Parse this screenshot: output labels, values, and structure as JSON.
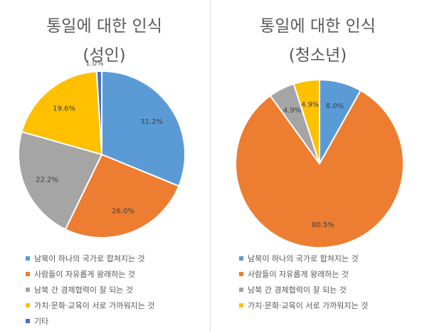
{
  "chart_data": [
    {
      "type": "pie",
      "title": "통일에 대한 인식",
      "subtitle": "(성인)",
      "legend_position": "bottom",
      "slices": [
        {
          "label": "남북이 하나의 국가로 합쳐지는 것",
          "value": 31.2,
          "value_label": "31.2%",
          "color": "#5b9bd5"
        },
        {
          "label": "사람들이 자유롭게 왕래하는 것",
          "value": 26.0,
          "value_label": "26.0%",
          "color": "#ed7d31"
        },
        {
          "label": "남북 간 경제협력이 잘 되는 것",
          "value": 22.2,
          "value_label": "22.2%",
          "color": "#a5a5a5"
        },
        {
          "label": "가치·문화·교육이 서로 가까워지는 것",
          "value": 19.6,
          "value_label": "19.6%",
          "color": "#ffc000"
        },
        {
          "label": "기타",
          "value": 1.0,
          "value_label": "1.0%",
          "color": "#4472c4"
        }
      ]
    },
    {
      "type": "pie",
      "title": "통일에 대한 인식",
      "subtitle": "(청소년)",
      "legend_position": "bottom",
      "slices": [
        {
          "label": "남북이 하나의 국가로 합쳐지는 것",
          "value": 8.0,
          "value_label": "8.0%",
          "color": "#5b9bd5"
        },
        {
          "label": "사람들이 자유롭게 왕래하는 것",
          "value": 80.5,
          "value_label": "80.5%",
          "color": "#ed7d31"
        },
        {
          "label": "남북 간 경제협력이 잘 되는 것",
          "value": 4.9,
          "value_label": "4.9%",
          "color": "#a5a5a5"
        },
        {
          "label": "가치·문화·교육이 서로 가까워지는 것",
          "value": 4.9,
          "value_label": "4.9%",
          "color": "#ffc000"
        }
      ]
    }
  ]
}
